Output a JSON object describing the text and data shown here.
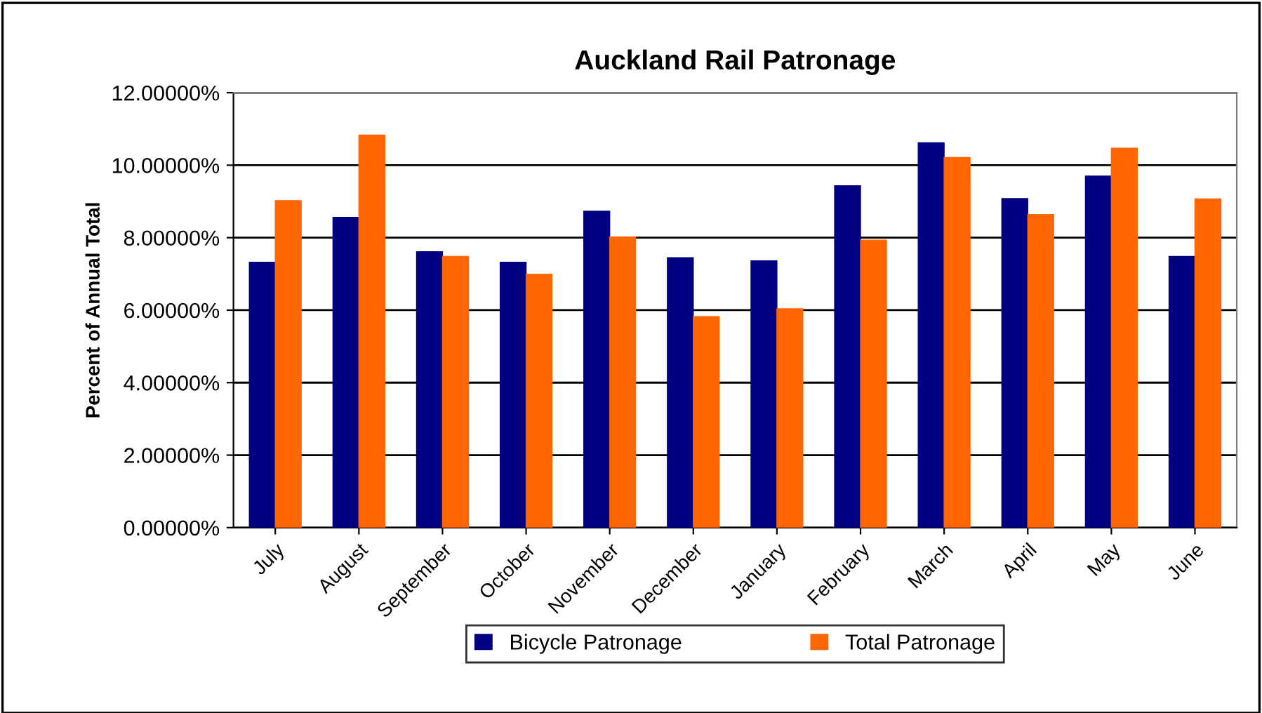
{
  "chart_data": {
    "type": "bar",
    "title": "Auckland Rail Patronage",
    "ylabel": "Percent of Annual Total",
    "categories": [
      "July",
      "August",
      "September",
      "October",
      "November",
      "December",
      "January",
      "February",
      "March",
      "April",
      "May",
      "June"
    ],
    "series": [
      {
        "name": "Bicycle Patronage",
        "color": "#000080",
        "values": [
          7.32,
          8.56,
          7.61,
          7.32,
          8.73,
          7.45,
          7.36,
          9.43,
          10.62,
          9.08,
          9.7,
          7.48
        ]
      },
      {
        "name": "Total Patronage",
        "color": "#ff6600",
        "values": [
          9.02,
          10.83,
          7.48,
          6.99,
          8.02,
          5.82,
          6.04,
          7.93,
          10.21,
          8.64,
          10.47,
          9.07
        ]
      }
    ],
    "ylim": [
      0,
      12
    ],
    "yticks": [
      {
        "value": 0,
        "label": "0.00000%"
      },
      {
        "value": 2,
        "label": "2.00000%"
      },
      {
        "value": 4,
        "label": "4.00000%"
      },
      {
        "value": 6,
        "label": "6.00000%"
      },
      {
        "value": 8,
        "label": "8.00000%"
      },
      {
        "value": 10,
        "label": "10.00000%"
      },
      {
        "value": 12,
        "label": "12.00000%"
      }
    ],
    "grid": "y",
    "legend": "bottom"
  }
}
